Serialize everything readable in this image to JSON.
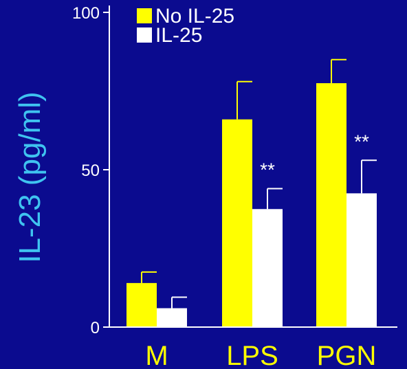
{
  "colors": {
    "background": "#0b0b8f",
    "axis": "#ffffff",
    "tick_text": "#ffffff",
    "ylabel": "#3fc3f0",
    "category_text": "#ffff00",
    "series": [
      "#ffff00",
      "#ffffff"
    ]
  },
  "chart_data": {
    "type": "bar",
    "ylabel": "IL-23 (pg/ml)",
    "ylim": [
      0,
      100
    ],
    "yticks": [
      0,
      50,
      100
    ],
    "ytick_labels": [
      "0",
      "50",
      "100"
    ],
    "categories": [
      "M",
      "LPS",
      "PGN"
    ],
    "legend": {
      "placement": "top-left"
    },
    "series": [
      {
        "name": "No IL-25",
        "values": [
          14,
          66,
          77.5
        ],
        "errors": [
          3.5,
          12,
          7.5
        ]
      },
      {
        "name": "IL-25",
        "values": [
          6,
          37.5,
          42.5
        ],
        "errors": [
          3.5,
          6.5,
          10.5
        ]
      }
    ],
    "annotations": [
      {
        "category": "LPS",
        "series": 1,
        "text": "**"
      },
      {
        "category": "PGN",
        "series": 1,
        "text": "**"
      }
    ]
  }
}
